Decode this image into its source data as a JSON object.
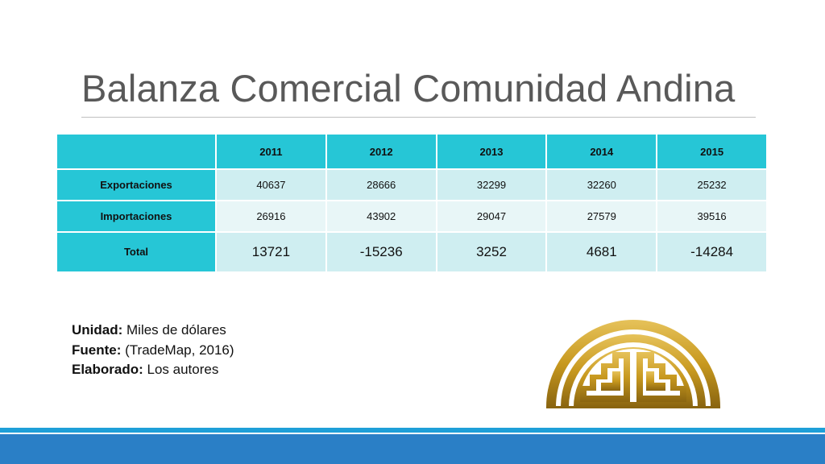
{
  "slide": {
    "title": "Balanza Comercial Comunidad Andina"
  },
  "table": {
    "header": [
      "",
      "2011",
      "2012",
      "2013",
      "2014",
      "2015"
    ],
    "rows": [
      {
        "label": "Exportaciones",
        "values": [
          "40637",
          "28666",
          "32299",
          "32260",
          "25232"
        ]
      },
      {
        "label": "Importaciones",
        "values": [
          "26916",
          "43902",
          "29047",
          "27579",
          "39516"
        ]
      },
      {
        "label": "Total",
        "values": [
          "13721",
          "-15236",
          "3252",
          "4681",
          "-14284"
        ]
      }
    ]
  },
  "notes": {
    "unit_label": "Unidad:",
    "unit_value": " Miles de dólares",
    "source_label": "Fuente:",
    "source_value": " (TradeMap, 2016)",
    "made_label": "Elaborado:",
    "made_value": " Los autores"
  },
  "colors": {
    "header_fill": "#26c6d6",
    "row_fill_dark": "#cfeef1",
    "row_fill_light": "#e8f6f7",
    "logo_gold": "#c8991f",
    "footer_blue": "#2a7fc6"
  },
  "icons": {
    "logo": "comunidad-andina-logo"
  }
}
